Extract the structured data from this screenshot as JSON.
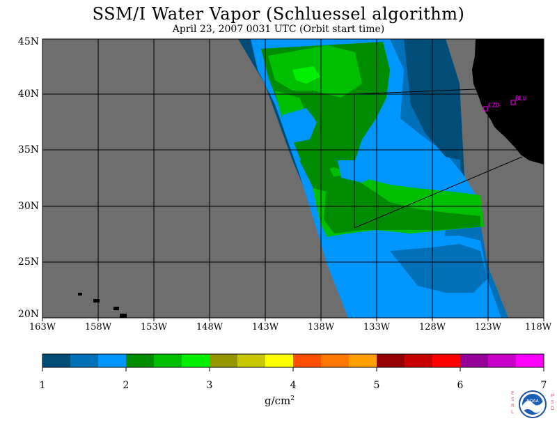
{
  "title": "SSM/I Water Vapor (Schluessel algorithm)",
  "subtitle": "April 23, 2007  0031 UTC  (Orbit start time)",
  "map": {
    "lat_labels": [
      "45N",
      "40N",
      "35N",
      "30N",
      "25N",
      "20N"
    ],
    "lon_labels": [
      "163W",
      "158W",
      "153W",
      "148W",
      "143W",
      "138W",
      "133W",
      "128W",
      "123W",
      "118W"
    ],
    "stations": [
      {
        "id": "CZD",
        "marker_color": "#ff00ff"
      },
      {
        "id": "BLU",
        "marker_color": "#ff00ff"
      }
    ],
    "colors": {
      "no_data": "#6e6e6e",
      "land": "#000000",
      "grid_lines": "#000000"
    }
  },
  "colorbar": {
    "tick_labels": [
      "1",
      "2",
      "3",
      "4",
      "5",
      "6",
      "7"
    ],
    "units_base": "g/cm",
    "units_exp": "2",
    "colors": [
      "#004e78",
      "#0070b8",
      "#0096ff",
      "#008c00",
      "#00be00",
      "#00f000",
      "#969600",
      "#c8c800",
      "#ffff00",
      "#ff5000",
      "#ff7800",
      "#ffa000",
      "#960000",
      "#c80000",
      "#ff0000",
      "#960096",
      "#c800c8",
      "#ff00ff"
    ]
  },
  "logo": {
    "text": "NOAA",
    "left_letters": [
      "E",
      "S",
      "R",
      "L"
    ],
    "right_letters": [
      "P",
      "S",
      "D"
    ]
  }
}
